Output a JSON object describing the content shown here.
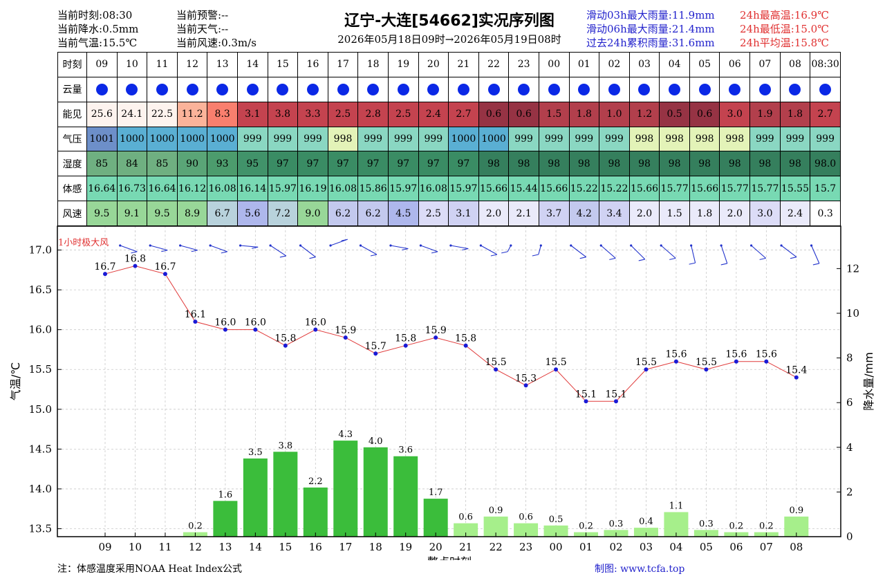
{
  "header": {
    "left": [
      {
        "label": "当前时刻:",
        "value": "08:30"
      },
      {
        "label": "当前降水:",
        "value": "0.5mm"
      },
      {
        "label": "当前气温:",
        "value": "15.5℃"
      }
    ],
    "mid": [
      {
        "label": "当前预警:",
        "value": "--"
      },
      {
        "label": "当前天气:",
        "value": "--"
      },
      {
        "label": "当前风速:",
        "value": "0.3m/s"
      }
    ],
    "rain_stats": [
      {
        "label": "滑动03h最大雨量:",
        "value": "11.9mm"
      },
      {
        "label": "滑动06h最大雨量:",
        "value": "21.4mm"
      },
      {
        "label": "过去24h累积雨量:",
        "value": "31.6mm"
      }
    ],
    "temp_stats": [
      {
        "label": "24h最高温:",
        "value": "16.9℃"
      },
      {
        "label": "24h最低温:",
        "value": "15.0℃"
      },
      {
        "label": "24h平均温:",
        "value": "15.8℃"
      }
    ],
    "title": "辽宁-大连[54662]实况序列图",
    "subtitle": "2026年05月18日09时→2026年05月19日08时"
  },
  "table": {
    "row_labels": [
      "时刻",
      "云量",
      "能见",
      "气压",
      "湿度",
      "体感",
      "风速"
    ],
    "hours": [
      "09",
      "10",
      "11",
      "12",
      "13",
      "14",
      "15",
      "16",
      "17",
      "18",
      "19",
      "20",
      "21",
      "22",
      "23",
      "00",
      "01",
      "02",
      "03",
      "04",
      "05",
      "06",
      "07",
      "08",
      "08:30"
    ],
    "visibility": [
      "25.6",
      "24.1",
      "22.5",
      "11.2",
      "8.3",
      "3.1",
      "3.8",
      "3.3",
      "2.5",
      "2.8",
      "2.5",
      "2.4",
      "2.7",
      "0.6",
      "0.6",
      "1.5",
      "1.8",
      "1.0",
      "1.2",
      "0.5",
      "0.6",
      "3.0",
      "1.9",
      "1.8",
      "2.7"
    ],
    "pressure": [
      "1001",
      "1000",
      "1000",
      "1000",
      "1000",
      "999",
      "999",
      "999",
      "998",
      "999",
      "999",
      "999",
      "1000",
      "1000",
      "999",
      "999",
      "999",
      "999",
      "998",
      "998",
      "998",
      "998",
      "999",
      "999",
      "999"
    ],
    "humidity": [
      "85",
      "84",
      "85",
      "90",
      "93",
      "95",
      "97",
      "97",
      "97",
      "97",
      "97",
      "97",
      "97",
      "98",
      "98",
      "98",
      "98",
      "98",
      "98",
      "98",
      "98",
      "98",
      "98",
      "98",
      "98.0"
    ],
    "feels_like": [
      "16.64",
      "16.73",
      "16.64",
      "16.12",
      "16.08",
      "16.14",
      "15.97",
      "16.19",
      "16.08",
      "15.86",
      "15.97",
      "16.08",
      "15.97",
      "15.66",
      "15.44",
      "15.66",
      "15.22",
      "15.22",
      "15.66",
      "15.77",
      "15.66",
      "15.77",
      "15.77",
      "15.55",
      "15.7"
    ],
    "wind_speed": [
      "9.5",
      "9.1",
      "9.5",
      "8.9",
      "6.7",
      "5.6",
      "7.2",
      "9.0",
      "6.2",
      "6.2",
      "4.5",
      "2.5",
      "3.1",
      "2.0",
      "2.1",
      "3.7",
      "4.2",
      "3.4",
      "2.0",
      "1.5",
      "1.8",
      "2.0",
      "3.0",
      "2.4",
      "0.3"
    ]
  },
  "colors": {
    "vis_band": [
      "#fdf3ee",
      "#fdf3ee",
      "#fdf3ee",
      "#fbb39a",
      "#f97f6e",
      "#c4434f",
      "#c4434f",
      "#c4434f",
      "#c4434f",
      "#c4434f",
      "#c4434f",
      "#c4434f",
      "#c4434f",
      "#963344",
      "#963344",
      "#b23f4c",
      "#b23f4c",
      "#b23f4c",
      "#b23f4c",
      "#963344",
      "#963344",
      "#c4434f",
      "#b23f4c",
      "#b23f4c",
      "#c4434f"
    ],
    "pres": {
      "1001": "#6d8fc9",
      "1000": "#5aafd3",
      "999": "#8ad7c2",
      "998": "#e3f3b8"
    },
    "hum": {
      "84": "#6fb081",
      "85": "#6fb081",
      "90": "#5aa577",
      "93": "#4c9c6d",
      "95": "#41936a",
      "97": "#3a8c64",
      "98": "#357f5d",
      "98.0": "#357f5d"
    },
    "feels": "#78d9b3",
    "wind_band": [
      "#98d798",
      "#98d798",
      "#98d798",
      "#98d798",
      "#b8d2dc",
      "#aeb7ec",
      "#b8d2dc",
      "#98d798",
      "#c3c9ee",
      "#c3c9ee",
      "#aeb7ec",
      "#dcdcf7",
      "#d0d2f3",
      "#eaeafa",
      "#eaeafa",
      "#d0d2f3",
      "#c3c9ee",
      "#d0d2f3",
      "#eaeafa",
      "#eaeafa",
      "#eaeafa",
      "#eaeafa",
      "#dcdcf7",
      "#eaeafa",
      "#ffffff"
    ],
    "cloud": "#0b28e6",
    "temp_line": "#e03a3a",
    "temp_marker": "#1a1ad6",
    "wind_barb": "#2233cc",
    "rain_dark": "#3bbd3b",
    "rain_light": "#a6ef8b"
  },
  "chart_data": {
    "type": "bar+line",
    "x": [
      "09",
      "10",
      "11",
      "12",
      "13",
      "14",
      "15",
      "16",
      "17",
      "18",
      "19",
      "20",
      "21",
      "22",
      "23",
      "00",
      "01",
      "02",
      "03",
      "04",
      "05",
      "06",
      "07",
      "08"
    ],
    "xlabel": "整点时刻",
    "ylabel_left": "气温/℃",
    "ylabel_right": "降水量/mm",
    "ylim_left": [
      13.4,
      17.3
    ],
    "yticks_left": [
      13.5,
      14.0,
      14.5,
      15.0,
      15.5,
      16.0,
      16.5,
      17.0
    ],
    "ylim_right": [
      0,
      13.9
    ],
    "yticks_right": [
      0,
      2,
      4,
      6,
      8,
      10,
      12
    ],
    "grid": true,
    "series": [
      {
        "name": "气温",
        "type": "line",
        "values": [
          16.7,
          16.8,
          16.7,
          16.1,
          16.0,
          16.0,
          15.8,
          16.0,
          15.9,
          15.7,
          15.8,
          15.9,
          15.8,
          15.5,
          15.3,
          15.5,
          15.1,
          15.1,
          15.5,
          15.6,
          15.5,
          15.6,
          15.6,
          15.4
        ]
      },
      {
        "name": "降水量",
        "type": "bar",
        "values": [
          0,
          0,
          0,
          0.2,
          1.6,
          3.5,
          3.8,
          2.2,
          4.3,
          4.0,
          3.6,
          1.7,
          0.6,
          0.9,
          0.6,
          0.5,
          0.2,
          0.3,
          0.4,
          1.1,
          0.3,
          0.2,
          0.2,
          0.9
        ]
      }
    ],
    "wind_barb_label": "1小时极大风"
  },
  "footer": {
    "note": "注：体感温度采用NOAA Heat Index公式",
    "credit": "制图: www.tcfa.top"
  }
}
